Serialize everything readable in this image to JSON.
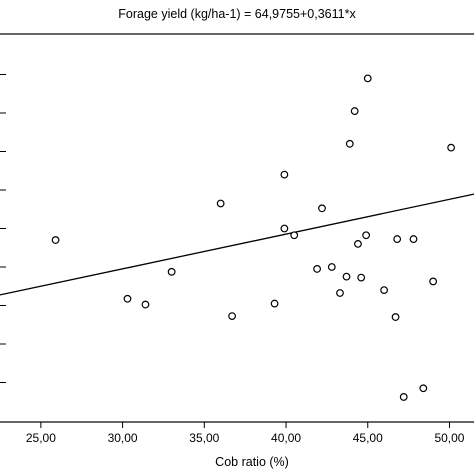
{
  "chart_data": {
    "type": "scatter",
    "title": "Forage yield (kg/ha-1) = 64,9755+0,3611*x",
    "xlabel": "Cob ratio (%)",
    "ylabel": "",
    "xlim": [
      22.5,
      51.5
    ],
    "ylim": [
      60,
      100
    ],
    "x_ticks": [
      25,
      30,
      35,
      40,
      45,
      50
    ],
    "x_tick_labels": [
      "25,00",
      "30,00",
      "35,00",
      "40,00",
      "45,00",
      "50,00"
    ],
    "y_ticks": [
      64,
      68,
      72,
      76,
      80,
      84,
      88,
      92,
      96
    ],
    "y_tick_labels": [],
    "grid": false,
    "regression": {
      "intercept": 64.9755,
      "slope": 0.3611
    },
    "series": [
      {
        "points": [
          {
            "x": 25.9,
            "y": 78.8
          },
          {
            "x": 30.3,
            "y": 72.7
          },
          {
            "x": 31.4,
            "y": 72.1
          },
          {
            "x": 33.0,
            "y": 75.5
          },
          {
            "x": 36.0,
            "y": 82.6
          },
          {
            "x": 36.7,
            "y": 70.9
          },
          {
            "x": 39.3,
            "y": 72.2
          },
          {
            "x": 39.9,
            "y": 80.0
          },
          {
            "x": 39.9,
            "y": 85.6
          },
          {
            "x": 40.5,
            "y": 79.3
          },
          {
            "x": 41.9,
            "y": 75.8
          },
          {
            "x": 42.2,
            "y": 82.1
          },
          {
            "x": 42.8,
            "y": 76.0
          },
          {
            "x": 43.3,
            "y": 73.3
          },
          {
            "x": 43.7,
            "y": 75.0
          },
          {
            "x": 43.9,
            "y": 88.8
          },
          {
            "x": 44.2,
            "y": 92.2
          },
          {
            "x": 44.4,
            "y": 78.4
          },
          {
            "x": 44.6,
            "y": 74.9
          },
          {
            "x": 44.9,
            "y": 79.3
          },
          {
            "x": 45.0,
            "y": 95.6
          },
          {
            "x": 46.0,
            "y": 73.6
          },
          {
            "x": 46.7,
            "y": 70.8
          },
          {
            "x": 46.8,
            "y": 78.9
          },
          {
            "x": 47.2,
            "y": 62.5
          },
          {
            "x": 47.8,
            "y": 78.9
          },
          {
            "x": 48.4,
            "y": 63.4
          },
          {
            "x": 49.0,
            "y": 74.5
          },
          {
            "x": 50.1,
            "y": 88.4
          }
        ]
      }
    ]
  }
}
